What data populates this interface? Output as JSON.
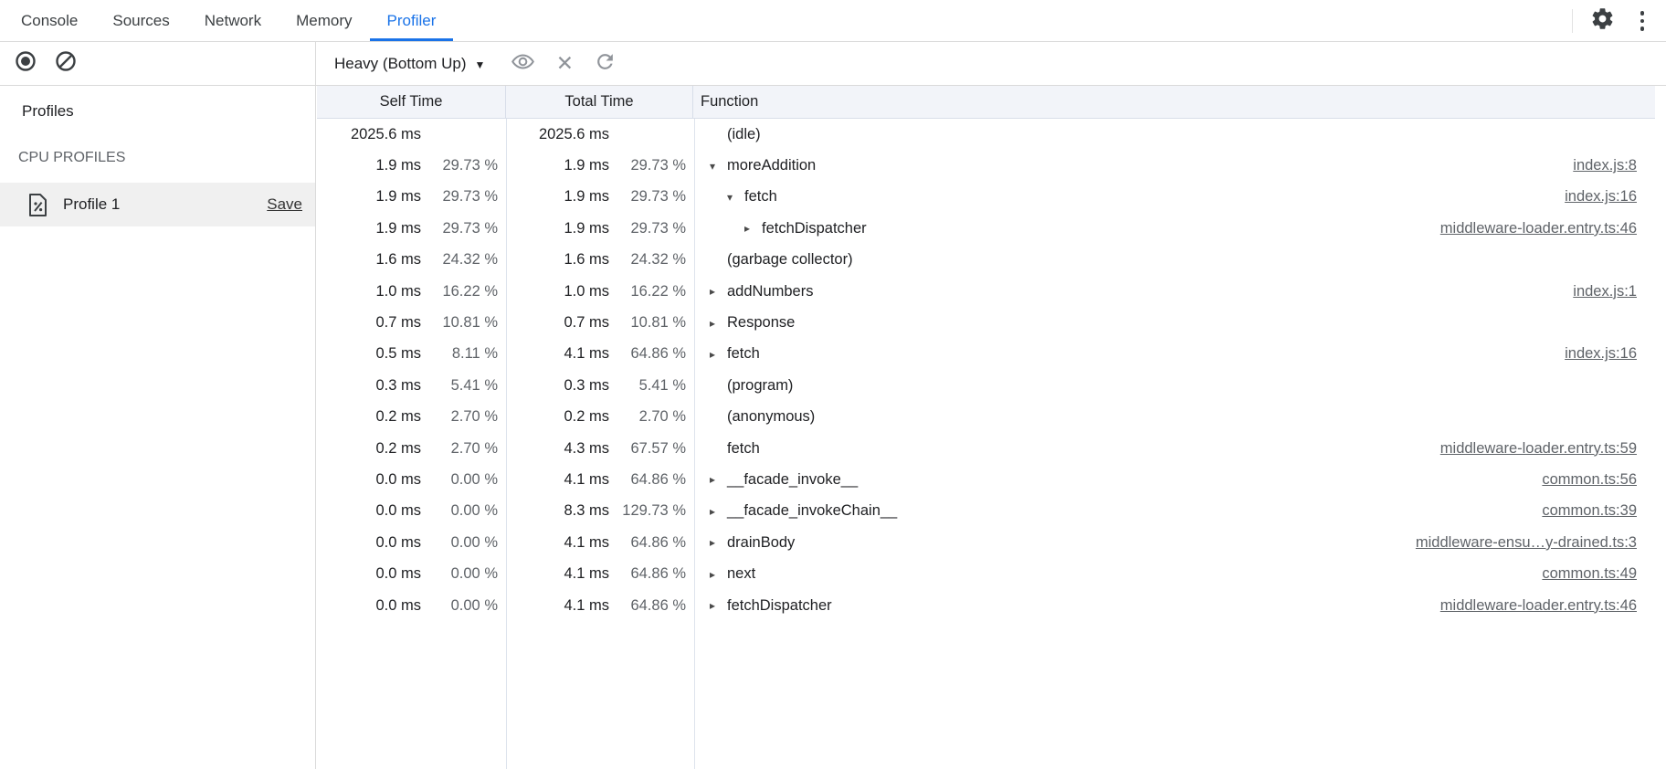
{
  "tabbar": {
    "tabs": [
      {
        "label": "Console"
      },
      {
        "label": "Sources"
      },
      {
        "label": "Network"
      },
      {
        "label": "Memory"
      },
      {
        "label": "Profiler"
      }
    ],
    "active_tab": "Profiler"
  },
  "toolbar": {
    "view_dropdown_value": "Heavy (Bottom Up)",
    "caret_glyph": "▼",
    "close_glyph": "✕"
  },
  "sidebar": {
    "heading": "Profiles",
    "section_heading": "CPU PROFILES",
    "profile": {
      "name": "Profile 1",
      "save_label": "Save"
    }
  },
  "grid": {
    "columns": {
      "self": "Self Time",
      "total": "Total Time",
      "fn": "Function"
    },
    "glyphs": {
      "expanded": "▾",
      "collapsed": "▸"
    },
    "rows": [
      {
        "self_ms": "2025.6 ms",
        "self_pct": "",
        "total_ms": "2025.6 ms",
        "total_pct": "",
        "depth": 0,
        "expand": "none",
        "fn": "(idle)",
        "link": ""
      },
      {
        "self_ms": "1.9 ms",
        "self_pct": "29.73 %",
        "total_ms": "1.9 ms",
        "total_pct": "29.73 %",
        "depth": 0,
        "expand": "expanded",
        "fn": "moreAddition",
        "link": "index.js:8"
      },
      {
        "self_ms": "1.9 ms",
        "self_pct": "29.73 %",
        "total_ms": "1.9 ms",
        "total_pct": "29.73 %",
        "depth": 1,
        "expand": "expanded",
        "fn": "fetch",
        "link": "index.js:16"
      },
      {
        "self_ms": "1.9 ms",
        "self_pct": "29.73 %",
        "total_ms": "1.9 ms",
        "total_pct": "29.73 %",
        "depth": 2,
        "expand": "collapsed",
        "fn": "fetchDispatcher",
        "link": "middleware-loader.entry.ts:46"
      },
      {
        "self_ms": "1.6 ms",
        "self_pct": "24.32 %",
        "total_ms": "1.6 ms",
        "total_pct": "24.32 %",
        "depth": 0,
        "expand": "none",
        "fn": "(garbage collector)",
        "link": ""
      },
      {
        "self_ms": "1.0 ms",
        "self_pct": "16.22 %",
        "total_ms": "1.0 ms",
        "total_pct": "16.22 %",
        "depth": 0,
        "expand": "collapsed",
        "fn": "addNumbers",
        "link": "index.js:1"
      },
      {
        "self_ms": "0.7 ms",
        "self_pct": "10.81 %",
        "total_ms": "0.7 ms",
        "total_pct": "10.81 %",
        "depth": 0,
        "expand": "collapsed",
        "fn": "Response",
        "link": ""
      },
      {
        "self_ms": "0.5 ms",
        "self_pct": "8.11 %",
        "total_ms": "4.1 ms",
        "total_pct": "64.86 %",
        "depth": 0,
        "expand": "collapsed",
        "fn": "fetch",
        "link": "index.js:16"
      },
      {
        "self_ms": "0.3 ms",
        "self_pct": "5.41 %",
        "total_ms": "0.3 ms",
        "total_pct": "5.41 %",
        "depth": 0,
        "expand": "none",
        "fn": "(program)",
        "link": ""
      },
      {
        "self_ms": "0.2 ms",
        "self_pct": "2.70 %",
        "total_ms": "0.2 ms",
        "total_pct": "2.70 %",
        "depth": 0,
        "expand": "none",
        "fn": "(anonymous)",
        "link": ""
      },
      {
        "self_ms": "0.2 ms",
        "self_pct": "2.70 %",
        "total_ms": "4.3 ms",
        "total_pct": "67.57 %",
        "depth": 0,
        "expand": "none",
        "fn": "fetch",
        "link": "middleware-loader.entry.ts:59"
      },
      {
        "self_ms": "0.0 ms",
        "self_pct": "0.00 %",
        "total_ms": "4.1 ms",
        "total_pct": "64.86 %",
        "depth": 0,
        "expand": "collapsed",
        "fn": "__facade_invoke__",
        "link": "common.ts:56"
      },
      {
        "self_ms": "0.0 ms",
        "self_pct": "0.00 %",
        "total_ms": "8.3 ms",
        "total_pct": "129.73 %",
        "depth": 0,
        "expand": "collapsed",
        "fn": "__facade_invokeChain__",
        "link": "common.ts:39"
      },
      {
        "self_ms": "0.0 ms",
        "self_pct": "0.00 %",
        "total_ms": "4.1 ms",
        "total_pct": "64.86 %",
        "depth": 0,
        "expand": "collapsed",
        "fn": "drainBody",
        "link": "middleware-ensu…y-drained.ts:3"
      },
      {
        "self_ms": "0.0 ms",
        "self_pct": "0.00 %",
        "total_ms": "4.1 ms",
        "total_pct": "64.86 %",
        "depth": 0,
        "expand": "collapsed",
        "fn": "next",
        "link": "common.ts:49"
      },
      {
        "self_ms": "0.0 ms",
        "self_pct": "0.00 %",
        "total_ms": "4.1 ms",
        "total_pct": "64.86 %",
        "depth": 0,
        "expand": "collapsed",
        "fn": "fetchDispatcher",
        "link": "middleware-loader.entry.ts:46"
      }
    ]
  }
}
